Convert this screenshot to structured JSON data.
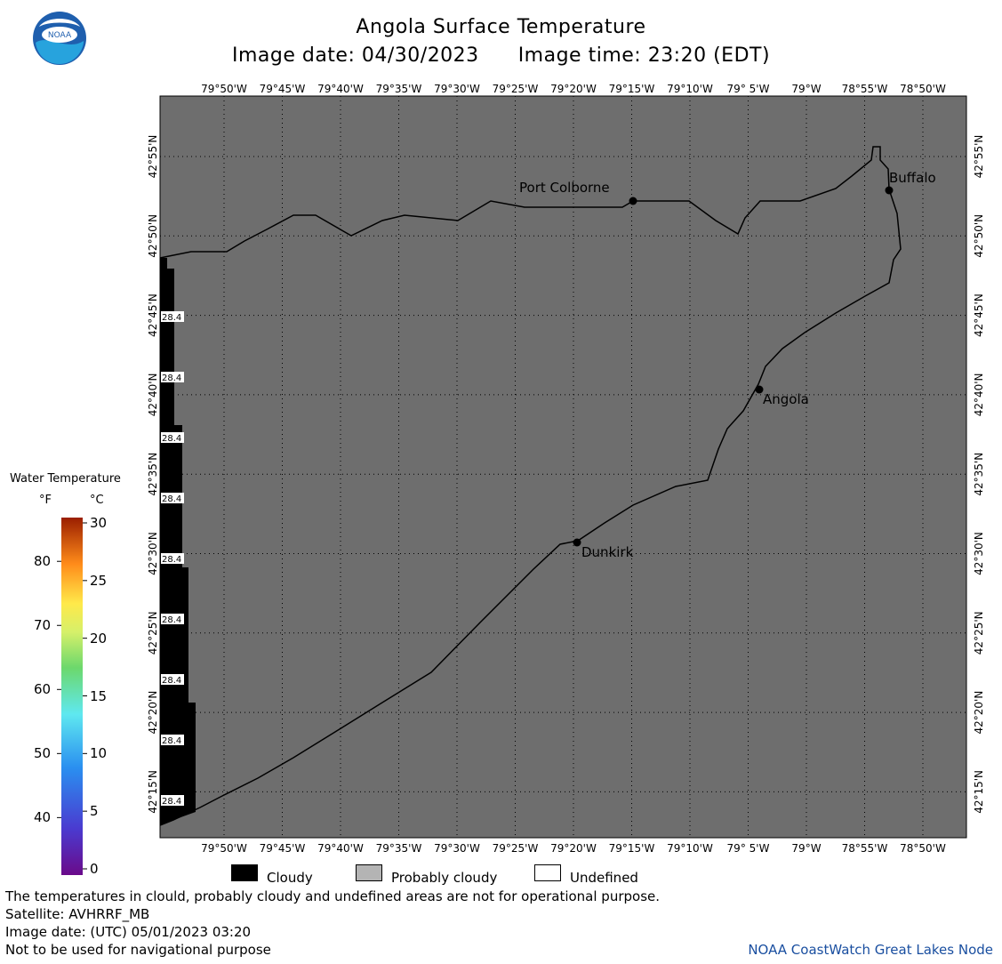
{
  "header": {
    "title": "Angola Surface Temperature",
    "subtitle_date": "Image date: 04/30/2023",
    "subtitle_time": "Image time: 23:20 (EDT)",
    "logo_text": "NOAA"
  },
  "map": {
    "lon_labels": [
      "79°50'W",
      "79°45'W",
      "79°40'W",
      "79°35'W",
      "79°30'W",
      "79°25'W",
      "79°20'W",
      "79°15'W",
      "79°10'W",
      "79° 5'W",
      "79°W",
      "78°55'W",
      "78°50'W"
    ],
    "lat_labels": [
      "42°55'N",
      "42°50'N",
      "42°45'N",
      "42°40'N",
      "42°35'N",
      "42°30'N",
      "42°25'N",
      "42°20'N",
      "42°15'N"
    ],
    "cities": [
      {
        "name": "Port Colborne"
      },
      {
        "name": "Buffalo"
      },
      {
        "name": "Angola"
      },
      {
        "name": "Dunkirk"
      }
    ],
    "cloud_value_labels": [
      "28.4",
      "28.4",
      "28.4",
      "28.4",
      "28.4",
      "28.4",
      "28.4",
      "28.4",
      "28.4"
    ],
    "colors": {
      "land": "#6e6e6e",
      "water_undefined": "#ffffff",
      "cloud": "#000000",
      "grid": "#000000"
    }
  },
  "legend": {
    "title": "Water Temperature",
    "unit_f": "°F",
    "unit_c": "°C",
    "fahrenheit_ticks": [
      "80",
      "70",
      "60",
      "50",
      "40"
    ],
    "celsius_ticks": [
      "30",
      "25",
      "20",
      "15",
      "10",
      "5",
      "0"
    ],
    "range_c": [
      0,
      30
    ]
  },
  "key": {
    "cloudy": "Cloudy",
    "probably_cloudy": "Probably cloudy",
    "undefined": "Undefined",
    "colors": {
      "cloudy": "#000000",
      "probably_cloudy": "#b4b4b4",
      "undefined": "#ffffff"
    }
  },
  "footer": {
    "disclaimer": "The temperatures in clould, probably cloudy and undefined areas are not for operational purpose.",
    "satellite": "Satellite: AVHRRF_MB",
    "utc_date": "Image date: (UTC) 05/01/2023  03:20",
    "nav_warning": "Not to be used for navigational purpose",
    "credit": "NOAA CoastWatch Great Lakes Node"
  }
}
